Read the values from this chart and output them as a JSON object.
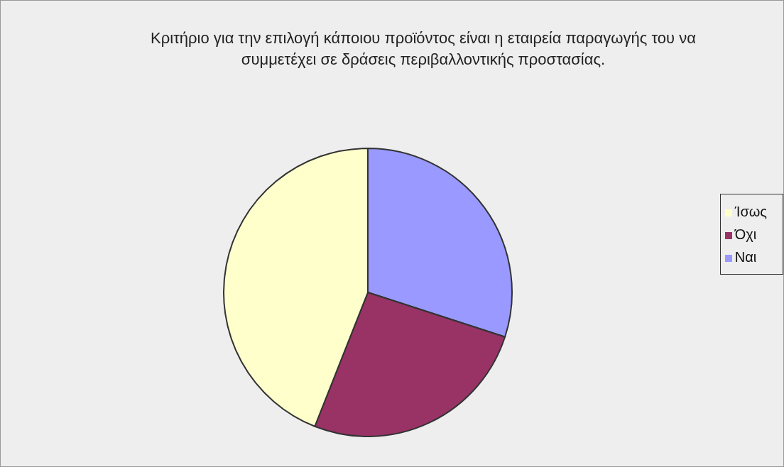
{
  "chart_data": {
    "type": "pie",
    "title": "Κριτήριο για την επιλογή κάποιου προϊόντος είναι η εταιρεία παραγωγής του να συμμετέχει σε δράσεις περιβαλλοντικής προστασίας.",
    "categories": [
      "Ναι",
      "Όχι",
      "Ίσως"
    ],
    "values": [
      30,
      26,
      44
    ],
    "colors": [
      "#9999ff",
      "#993366",
      "#ffffcc"
    ],
    "legend": "right"
  }
}
